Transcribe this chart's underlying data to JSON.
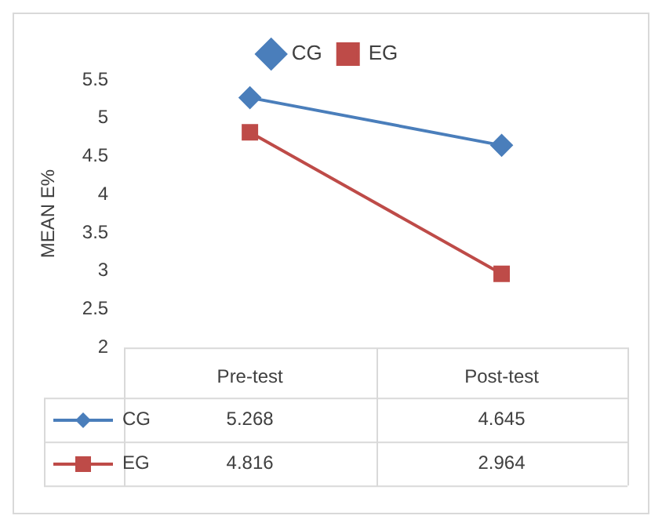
{
  "chart_data": {
    "type": "line",
    "ylabel": "MEAN E%",
    "categories": [
      "Pre-test",
      "Post-test"
    ],
    "series": [
      {
        "name": "CG",
        "color": "#4a7ebb",
        "values": [
          5.268,
          4.645
        ],
        "marker": "diamond"
      },
      {
        "name": "EG",
        "color": "#be4b48",
        "values": [
          4.816,
          2.964
        ],
        "marker": "square"
      }
    ],
    "ylim": [
      2,
      5.5
    ],
    "yticks": [
      2,
      2.5,
      3,
      3.5,
      4,
      4.5,
      5,
      5.5
    ],
    "grid": false,
    "legend": "top",
    "data_labels": true
  }
}
